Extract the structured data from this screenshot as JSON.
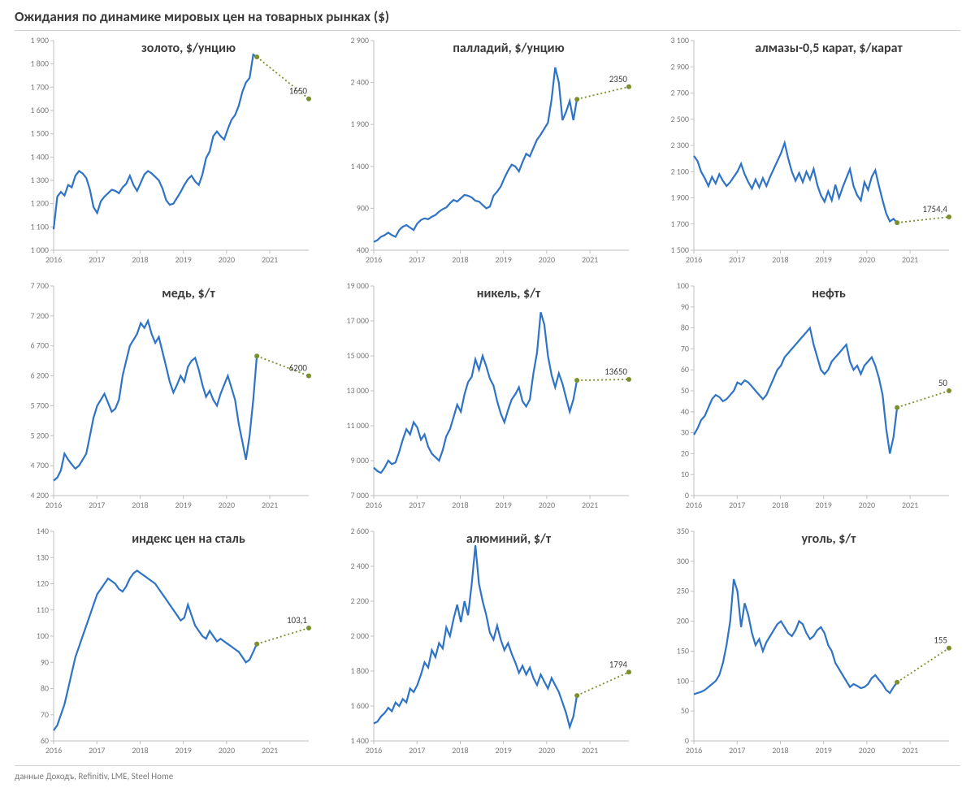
{
  "title": "Ожидания по динамике мировых цен на товарных рынках ($)",
  "footer": "данные Доходъ, Refinitiv, LME, Steel Home",
  "global": {
    "x_start_year": 2016,
    "x_end_year_data": 2020.7,
    "x_end_year_forecast": 2021.9,
    "points_per_year": 12,
    "series_color": "#2e73c5",
    "forecast_color": "#7a8f2e",
    "forecast_dot_fill": "#7a8f2e",
    "axis_color": "#bfbfbf",
    "tick_color": "#7a7a7a",
    "title_color": "#3b3b3b",
    "title_fontsize": 16,
    "title_fontweight": 700,
    "tick_fontsize": 10,
    "line_width": 2.2,
    "forecast_dash": "2 3",
    "forecast_label_fontsize": 11,
    "background": "#ffffff"
  },
  "x_ticks": [
    "2016",
    "2017",
    "2018",
    "2019",
    "2020",
    "2021"
  ],
  "panels": [
    {
      "title": "золото, $/унцию",
      "ymin": 1000,
      "ymax": 1900,
      "ytick_step": 100,
      "data": [
        1090,
        1230,
        1250,
        1235,
        1280,
        1270,
        1320,
        1340,
        1330,
        1310,
        1260,
        1185,
        1160,
        1210,
        1230,
        1245,
        1260,
        1255,
        1245,
        1270,
        1285,
        1320,
        1280,
        1255,
        1290,
        1325,
        1340,
        1330,
        1315,
        1300,
        1265,
        1215,
        1195,
        1200,
        1225,
        1250,
        1280,
        1305,
        1320,
        1295,
        1280,
        1325,
        1395,
        1425,
        1490,
        1510,
        1490,
        1475,
        1520,
        1560,
        1580,
        1620,
        1680,
        1720,
        1740,
        1840,
        1830
      ],
      "forecast_end_value": 1650,
      "forecast_label": "1650"
    },
    {
      "title": "палладий, $/унцию",
      "ymin": 400,
      "ymax": 2900,
      "ytick_step": 500,
      "data": [
        500,
        520,
        560,
        580,
        610,
        580,
        560,
        640,
        680,
        700,
        670,
        640,
        720,
        760,
        780,
        770,
        800,
        820,
        860,
        890,
        910,
        960,
        1000,
        980,
        1020,
        1060,
        1050,
        1030,
        990,
        980,
        940,
        900,
        920,
        1050,
        1100,
        1160,
        1260,
        1350,
        1420,
        1400,
        1340,
        1450,
        1550,
        1520,
        1620,
        1720,
        1780,
        1850,
        1920,
        2200,
        2580,
        2400,
        1950,
        2050,
        2180,
        1950,
        2200
      ],
      "forecast_end_value": 2350,
      "forecast_label": "2350"
    },
    {
      "title": "алмазы-0,5 карат, $/карат",
      "ymin": 1500,
      "ymax": 3100,
      "ytick_step": 200,
      "data": [
        2220,
        2180,
        2100,
        2050,
        1990,
        2060,
        2010,
        2080,
        2030,
        1990,
        2020,
        2060,
        2100,
        2160,
        2080,
        2020,
        1970,
        2040,
        1980,
        2050,
        1990,
        2060,
        2120,
        2180,
        2240,
        2320,
        2200,
        2100,
        2030,
        2090,
        2020,
        2100,
        2040,
        2120,
        2000,
        1920,
        1870,
        1950,
        1880,
        2000,
        1900,
        1980,
        2050,
        2120,
        1990,
        1920,
        1880,
        2020,
        1960,
        2060,
        2110,
        1990,
        1880,
        1780,
        1720,
        1740,
        1710
      ],
      "forecast_end_value": 1754.4,
      "forecast_label": "1754,4"
    },
    {
      "title": "медь, $/т",
      "ymin": 4200,
      "ymax": 7700,
      "ytick_step": 500,
      "data": [
        4450,
        4500,
        4620,
        4900,
        4800,
        4720,
        4650,
        4700,
        4800,
        4900,
        5200,
        5500,
        5700,
        5800,
        5900,
        5750,
        5600,
        5650,
        5800,
        6200,
        6450,
        6700,
        6800,
        6900,
        7080,
        7000,
        7120,
        6900,
        6750,
        6850,
        6600,
        6350,
        6100,
        5920,
        6050,
        6200,
        6100,
        6350,
        6450,
        6500,
        6300,
        6050,
        5850,
        5950,
        5800,
        5700,
        5900,
        6050,
        6200,
        6000,
        5800,
        5400,
        5100,
        4800,
        5200,
        5800,
        6530
      ],
      "forecast_end_value": 6200,
      "forecast_label": "6200"
    },
    {
      "title": "никель, $/т",
      "ymin": 7000,
      "ymax": 19000,
      "ytick_step": 2000,
      "data": [
        8600,
        8400,
        8300,
        8600,
        9000,
        8800,
        8900,
        9500,
        10200,
        10800,
        10500,
        11200,
        10900,
        10200,
        10500,
        9800,
        9400,
        9200,
        9000,
        9600,
        10400,
        10800,
        11500,
        12200,
        11800,
        12800,
        13500,
        13800,
        14800,
        14200,
        15000,
        14400,
        13700,
        13300,
        12400,
        11700,
        11200,
        11900,
        12500,
        12800,
        13200,
        12400,
        12100,
        12500,
        14000,
        15200,
        17500,
        16800,
        15000,
        13900,
        13200,
        14000,
        13400,
        12600,
        11800,
        12500,
        13600
      ],
      "forecast_end_value": 13650,
      "forecast_label": "13650"
    },
    {
      "title": "нефть",
      "ymin": 0,
      "ymax": 100,
      "ytick_step": 10,
      "data": [
        29,
        32,
        36,
        38,
        42,
        46,
        48,
        47,
        45,
        46,
        48,
        50,
        54,
        53,
        55,
        54,
        52,
        50,
        48,
        46,
        48,
        52,
        56,
        60,
        62,
        66,
        68,
        70,
        72,
        74,
        76,
        78,
        80,
        72,
        66,
        60,
        58,
        60,
        64,
        66,
        68,
        70,
        72,
        64,
        60,
        62,
        58,
        62,
        64,
        66,
        62,
        56,
        48,
        32,
        20,
        28,
        42
      ],
      "forecast_end_value": 50,
      "forecast_label": "50"
    },
    {
      "title": "индекс цен на сталь",
      "ymin": 60,
      "ymax": 140,
      "ytick_step": 10,
      "data": [
        64,
        66,
        70,
        74,
        80,
        86,
        92,
        96,
        100,
        104,
        108,
        112,
        116,
        118,
        120,
        122,
        121,
        120,
        118,
        117,
        119,
        122,
        124,
        125,
        124,
        123,
        122,
        121,
        120,
        118,
        116,
        114,
        112,
        110,
        108,
        106,
        107,
        112,
        108,
        104,
        102,
        100,
        99,
        102,
        100,
        98,
        99,
        98,
        97,
        96,
        95,
        94,
        92,
        90,
        91,
        94,
        97
      ],
      "forecast_end_value": 103.1,
      "forecast_label": "103,1"
    },
    {
      "title": "алюминий, $/т",
      "ymin": 1400,
      "ymax": 2600,
      "ytick_step": 200,
      "data": [
        1500,
        1510,
        1540,
        1560,
        1590,
        1570,
        1620,
        1600,
        1640,
        1620,
        1700,
        1680,
        1720,
        1780,
        1850,
        1820,
        1920,
        1880,
        1960,
        1930,
        2050,
        2000,
        2100,
        2180,
        2080,
        2200,
        2120,
        2300,
        2520,
        2300,
        2200,
        2120,
        2020,
        1980,
        2060,
        1980,
        1920,
        1960,
        1900,
        1850,
        1790,
        1830,
        1780,
        1820,
        1760,
        1720,
        1780,
        1740,
        1700,
        1760,
        1720,
        1680,
        1620,
        1560,
        1480,
        1540,
        1660
      ],
      "forecast_end_value": 1794,
      "forecast_label": "1794"
    },
    {
      "title": "уголь, $/т",
      "ymin": 0,
      "ymax": 350,
      "ytick_step": 50,
      "data": [
        78,
        80,
        82,
        85,
        90,
        95,
        100,
        110,
        130,
        160,
        200,
        270,
        250,
        190,
        230,
        210,
        180,
        160,
        170,
        150,
        165,
        175,
        185,
        195,
        200,
        190,
        180,
        175,
        185,
        200,
        195,
        180,
        170,
        175,
        185,
        190,
        180,
        160,
        150,
        130,
        120,
        110,
        100,
        90,
        95,
        92,
        88,
        90,
        95,
        105,
        110,
        102,
        95,
        85,
        80,
        90,
        98
      ],
      "forecast_end_value": 155,
      "forecast_label": "155"
    }
  ]
}
